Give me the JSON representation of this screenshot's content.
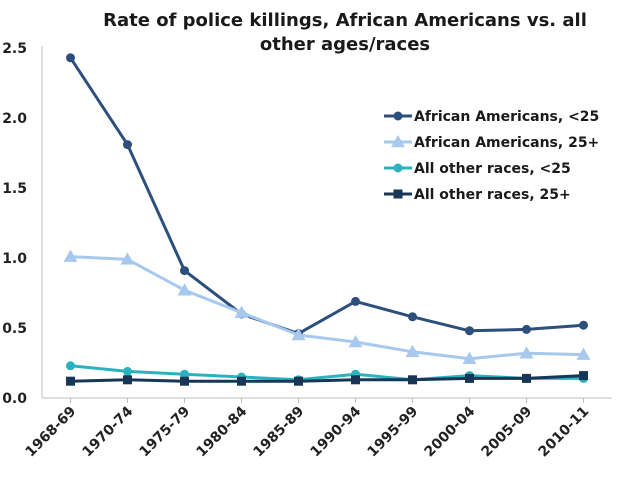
{
  "chart_data": {
    "type": "line",
    "title": "Rate of police killings, African Americans vs. all other ages/races",
    "title_lines": [
      "Rate of police killings, African Americans vs. all",
      "other ages/races"
    ],
    "xlabel": "",
    "ylabel": "",
    "categories": [
      "1968-69",
      "1970-74",
      "1975-79",
      "1980-84",
      "1985-89",
      "1990-94",
      "1995-99",
      "2000-04",
      "2005-09",
      "2010-11"
    ],
    "ylim": [
      0,
      2.5
    ],
    "yticks": [
      "0.0",
      "0.5",
      "1.0",
      "1.5",
      "2.0",
      "2.5"
    ],
    "grid": false,
    "legend_position": "right",
    "series": [
      {
        "name": "African Americans, <25",
        "marker": "circle",
        "color": "#2c4f7c",
        "values": [
          2.43,
          1.81,
          0.91,
          0.6,
          0.46,
          0.69,
          0.58,
          0.48,
          0.49,
          0.52
        ]
      },
      {
        "name": "African Americans, 25+",
        "marker": "triangle",
        "color": "#a7c9ed",
        "values": [
          1.01,
          0.99,
          0.77,
          0.61,
          0.45,
          0.4,
          0.33,
          0.28,
          0.32,
          0.31
        ]
      },
      {
        "name": "All other races, <25",
        "marker": "circle",
        "color": "#2ab3bf",
        "values": [
          0.23,
          0.19,
          0.17,
          0.15,
          0.13,
          0.17,
          0.13,
          0.16,
          0.14,
          0.14
        ]
      },
      {
        "name": "All other races, 25+",
        "marker": "square",
        "color": "#183656",
        "values": [
          0.12,
          0.13,
          0.12,
          0.12,
          0.12,
          0.13,
          0.13,
          0.14,
          0.14,
          0.16
        ]
      }
    ]
  }
}
